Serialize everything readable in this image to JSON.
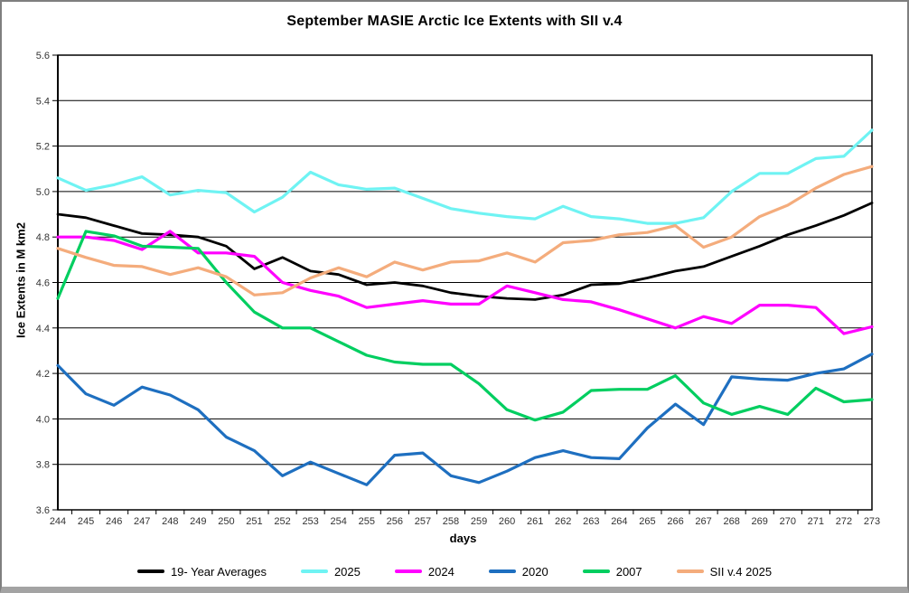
{
  "window": {
    "title": "September MASIE Arctic Ice Extents with SII v.4"
  },
  "chart_data": {
    "type": "line",
    "title": "September MASIE Arctic Ice Extents with SII v.4",
    "xlabel": "days",
    "ylabel": "Ice Extents in M km2",
    "x": [
      244,
      245,
      246,
      247,
      248,
      249,
      250,
      251,
      252,
      253,
      254,
      255,
      256,
      257,
      258,
      259,
      260,
      261,
      262,
      263,
      264,
      265,
      266,
      267,
      268,
      269,
      270,
      271,
      272,
      273
    ],
    "ylim": [
      3.6,
      5.6
    ],
    "ytick_step": 0.2,
    "grid": "horizontal",
    "legend_position": "bottom",
    "series": [
      {
        "name": "19- Year Averages",
        "color": "#000000",
        "values": [
          4.9,
          4.885,
          4.85,
          4.815,
          4.81,
          4.8,
          4.76,
          4.66,
          4.71,
          4.65,
          4.635,
          4.59,
          4.6,
          4.585,
          4.555,
          4.54,
          4.53,
          4.525,
          4.545,
          4.59,
          4.595,
          4.62,
          4.65,
          4.67,
          4.715,
          4.76,
          4.81,
          4.85,
          4.895,
          4.95
        ]
      },
      {
        "name": "2025",
        "color": "#6FF3F3",
        "values": [
          5.06,
          5.005,
          5.03,
          5.065,
          4.985,
          5.005,
          4.995,
          4.91,
          4.975,
          5.085,
          5.03,
          5.01,
          5.015,
          4.97,
          4.925,
          4.905,
          4.89,
          4.88,
          4.935,
          4.89,
          4.88,
          4.86,
          4.86,
          4.885,
          5.0,
          5.08,
          5.08,
          5.145,
          5.155,
          5.27
        ]
      },
      {
        "name": "2024",
        "color": "#FF00FF",
        "values": [
          4.8,
          4.8,
          4.785,
          4.745,
          4.825,
          4.73,
          4.73,
          4.715,
          4.6,
          4.565,
          4.54,
          4.49,
          4.505,
          4.52,
          4.505,
          4.505,
          4.585,
          4.555,
          4.525,
          4.515,
          4.48,
          4.44,
          4.4,
          4.45,
          4.42,
          4.5,
          4.5,
          4.49,
          4.375,
          4.405
        ]
      },
      {
        "name": "2020",
        "color": "#1E6FC0",
        "values": [
          4.235,
          4.11,
          4.06,
          4.14,
          4.105,
          4.04,
          3.92,
          3.86,
          3.75,
          3.81,
          3.76,
          3.71,
          3.84,
          3.85,
          3.75,
          3.72,
          3.77,
          3.83,
          3.86,
          3.83,
          3.825,
          3.96,
          4.065,
          3.975,
          4.185,
          4.175,
          4.17,
          4.2,
          4.22,
          4.285
        ]
      },
      {
        "name": "2007",
        "color": "#00CE60",
        "values": [
          4.53,
          4.825,
          4.805,
          4.76,
          4.755,
          4.75,
          4.6,
          4.47,
          4.4,
          4.4,
          4.34,
          4.28,
          4.25,
          4.24,
          4.24,
          4.155,
          4.04,
          3.995,
          4.03,
          4.125,
          4.13,
          4.13,
          4.19,
          4.07,
          4.02,
          4.055,
          4.02,
          4.135,
          4.075,
          4.085
        ]
      },
      {
        "name": "SII v.4 2025",
        "color": "#F4AC7C",
        "values": [
          4.75,
          4.71,
          4.675,
          4.67,
          4.635,
          4.665,
          4.625,
          4.545,
          4.555,
          4.62,
          4.665,
          4.625,
          4.69,
          4.655,
          4.69,
          4.695,
          4.73,
          4.69,
          4.775,
          4.785,
          4.81,
          4.82,
          4.85,
          4.755,
          4.8,
          4.89,
          4.94,
          5.015,
          5.075,
          5.11
        ]
      }
    ]
  }
}
